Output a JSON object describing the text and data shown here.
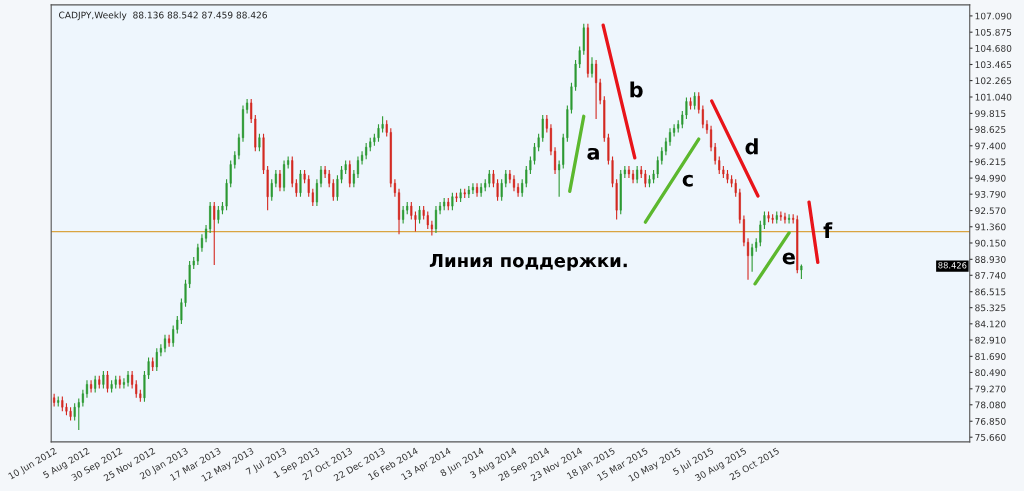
{
  "chart_data": {
    "type": "candlestick",
    "title": "CADJPY,Weekly  88.136 88.542 87.459 88.426",
    "x": [
      "2012-06-10",
      "2012-06-17",
      "2012-06-24",
      "2012-07-01",
      "2012-07-08",
      "2012-07-15",
      "2012-07-22",
      "2012-07-29",
      "2012-08-05",
      "2012-08-12",
      "2012-08-19",
      "2012-08-26",
      "2012-09-02",
      "2012-09-09",
      "2012-09-16",
      "2012-09-23",
      "2012-09-30",
      "2012-10-07",
      "2012-10-14",
      "2012-10-21",
      "2012-10-28",
      "2012-11-04",
      "2012-11-11",
      "2012-11-18",
      "2012-11-25",
      "2012-12-02",
      "2012-12-09",
      "2012-12-16",
      "2012-12-23",
      "2012-12-30",
      "2013-01-06",
      "2013-01-13",
      "2013-01-20",
      "2013-01-27",
      "2013-02-03",
      "2013-02-10",
      "2013-02-17",
      "2013-02-24",
      "2013-03-03",
      "2013-03-10",
      "2013-03-17",
      "2013-03-24",
      "2013-03-31",
      "2013-04-07",
      "2013-04-14",
      "2013-04-21",
      "2013-04-28",
      "2013-05-05",
      "2013-05-12",
      "2013-05-19",
      "2013-05-26",
      "2013-06-02",
      "2013-06-09",
      "2013-06-16",
      "2013-06-23",
      "2013-06-30",
      "2013-07-07",
      "2013-07-14",
      "2013-07-21",
      "2013-07-28",
      "2013-08-04",
      "2013-08-11",
      "2013-08-18",
      "2013-08-25",
      "2013-09-01",
      "2013-09-08",
      "2013-09-15",
      "2013-09-22",
      "2013-09-29",
      "2013-10-06",
      "2013-10-13",
      "2013-10-20",
      "2013-10-27",
      "2013-11-03",
      "2013-11-10",
      "2013-11-17",
      "2013-11-24",
      "2013-12-01",
      "2013-12-08",
      "2013-12-15",
      "2013-12-22",
      "2013-12-29",
      "2014-01-05",
      "2014-01-12",
      "2014-01-19",
      "2014-01-26",
      "2014-02-02",
      "2014-02-09",
      "2014-02-16",
      "2014-02-23",
      "2014-03-02",
      "2014-03-09",
      "2014-03-16",
      "2014-03-23",
      "2014-03-30",
      "2014-04-06",
      "2014-04-13",
      "2014-04-20",
      "2014-04-27",
      "2014-05-04",
      "2014-05-11",
      "2014-05-18",
      "2014-05-25",
      "2014-06-01",
      "2014-06-08",
      "2014-06-15",
      "2014-06-22",
      "2014-06-29",
      "2014-07-06",
      "2014-07-13",
      "2014-07-20",
      "2014-07-27",
      "2014-08-03",
      "2014-08-10",
      "2014-08-17",
      "2014-08-24",
      "2014-08-31",
      "2014-09-07",
      "2014-09-14",
      "2014-09-21",
      "2014-09-28",
      "2014-10-05",
      "2014-10-12",
      "2014-10-19",
      "2014-10-26",
      "2014-11-02",
      "2014-11-09",
      "2014-11-16",
      "2014-11-23",
      "2014-11-30",
      "2014-12-07",
      "2014-12-14",
      "2014-12-21",
      "2014-12-28",
      "2015-01-04",
      "2015-01-11",
      "2015-01-18",
      "2015-01-25",
      "2015-02-01",
      "2015-02-08",
      "2015-02-15",
      "2015-02-22",
      "2015-03-01",
      "2015-03-08",
      "2015-03-15",
      "2015-03-22",
      "2015-03-29",
      "2015-04-05",
      "2015-04-12",
      "2015-04-19",
      "2015-04-26",
      "2015-05-03",
      "2015-05-10",
      "2015-05-17",
      "2015-05-24",
      "2015-05-31",
      "2015-06-07",
      "2015-06-14",
      "2015-06-21",
      "2015-06-28",
      "2015-07-05",
      "2015-07-12",
      "2015-07-19",
      "2015-07-26",
      "2015-08-02",
      "2015-08-09",
      "2015-08-16",
      "2015-08-23",
      "2015-08-30",
      "2015-09-06",
      "2015-09-13",
      "2015-09-20",
      "2015-09-27",
      "2015-10-04",
      "2015-10-11",
      "2015-10-18",
      "2015-10-25",
      "2015-11-01",
      "2015-11-08",
      "2015-11-15",
      "2015-11-22",
      "2015-11-29",
      "2015-12-06"
    ],
    "ohlc": [
      [
        78.6,
        78.9,
        77.95,
        78.25
      ],
      [
        78.25,
        78.7,
        77.95,
        78.4
      ],
      [
        78.4,
        78.7,
        77.6,
        77.9
      ],
      [
        77.9,
        78.2,
        77.3,
        77.6
      ],
      [
        77.6,
        77.9,
        76.9,
        77.2
      ],
      [
        77.2,
        78.2,
        76.9,
        77.9
      ],
      [
        77.9,
        78.55,
        76.2,
        78.25
      ],
      [
        78.25,
        79.2,
        77.95,
        78.9
      ],
      [
        78.9,
        79.9,
        78.6,
        79.6
      ],
      [
        79.6,
        79.9,
        79.0,
        79.3
      ],
      [
        79.3,
        80.25,
        79.0,
        79.95
      ],
      [
        79.95,
        80.25,
        79.3,
        79.6
      ],
      [
        79.6,
        80.6,
        79.3,
        80.3
      ],
      [
        80.3,
        80.6,
        79.0,
        79.3
      ],
      [
        79.3,
        79.9,
        79.0,
        79.6
      ],
      [
        79.6,
        80.25,
        79.3,
        79.95
      ],
      [
        79.95,
        80.25,
        79.3,
        79.6
      ],
      [
        79.6,
        80.05,
        79.3,
        79.75
      ],
      [
        79.75,
        80.6,
        79.45,
        80.3
      ],
      [
        80.3,
        80.6,
        79.3,
        79.6
      ],
      [
        79.6,
        79.9,
        78.6,
        78.9
      ],
      [
        78.9,
        79.2,
        78.3,
        78.6
      ],
      [
        78.6,
        80.6,
        78.3,
        80.3
      ],
      [
        80.3,
        81.6,
        80.0,
        81.3
      ],
      [
        81.3,
        81.6,
        80.6,
        80.9
      ],
      [
        80.9,
        82.3,
        80.6,
        82.0
      ],
      [
        82.0,
        82.6,
        81.7,
        82.3
      ],
      [
        82.3,
        83.3,
        82.0,
        83.0
      ],
      [
        83.0,
        83.3,
        82.4,
        82.7
      ],
      [
        82.7,
        84.0,
        82.4,
        83.7
      ],
      [
        83.7,
        84.7,
        83.4,
        84.4
      ],
      [
        84.4,
        86.0,
        84.1,
        85.7
      ],
      [
        85.7,
        87.4,
        85.4,
        87.1
      ],
      [
        87.1,
        88.8,
        86.8,
        88.5
      ],
      [
        88.5,
        89.1,
        88.2,
        88.8
      ],
      [
        88.8,
        90.1,
        88.5,
        89.8
      ],
      [
        89.8,
        90.8,
        89.5,
        90.5
      ],
      [
        90.5,
        91.5,
        90.2,
        91.2
      ],
      [
        91.2,
        93.2,
        90.9,
        92.9
      ],
      [
        92.9,
        93.2,
        88.5,
        91.9
      ],
      [
        91.9,
        92.9,
        91.6,
        92.6
      ],
      [
        92.6,
        93.2,
        92.3,
        92.9
      ],
      [
        92.9,
        94.9,
        92.6,
        94.6
      ],
      [
        94.6,
        96.3,
        94.3,
        96.0
      ],
      [
        96.0,
        97.0,
        95.7,
        96.7
      ],
      [
        96.7,
        98.3,
        96.4,
        98.0
      ],
      [
        98.0,
        100.4,
        97.7,
        100.1
      ],
      [
        100.1,
        100.9,
        99.8,
        100.6
      ],
      [
        100.6,
        100.9,
        99.1,
        99.4
      ],
      [
        99.4,
        99.7,
        97.0,
        97.3
      ],
      [
        97.3,
        98.3,
        97.0,
        98.0
      ],
      [
        98.0,
        98.3,
        95.3,
        95.6
      ],
      [
        95.6,
        95.9,
        92.6,
        93.6
      ],
      [
        93.6,
        94.9,
        93.3,
        94.6
      ],
      [
        94.6,
        95.6,
        94.3,
        95.3
      ],
      [
        95.3,
        95.6,
        94.0,
        94.3
      ],
      [
        94.3,
        96.3,
        94.0,
        96.0
      ],
      [
        96.0,
        96.6,
        95.7,
        96.3
      ],
      [
        96.3,
        96.6,
        94.3,
        94.6
      ],
      [
        94.6,
        94.9,
        93.6,
        93.9
      ],
      [
        93.9,
        95.6,
        93.6,
        95.3
      ],
      [
        95.3,
        95.6,
        94.6,
        94.9
      ],
      [
        94.9,
        95.2,
        93.6,
        93.9
      ],
      [
        93.9,
        94.2,
        92.9,
        93.2
      ],
      [
        93.2,
        94.9,
        92.9,
        94.6
      ],
      [
        94.6,
        95.9,
        94.3,
        95.6
      ],
      [
        95.6,
        95.9,
        95.0,
        95.3
      ],
      [
        95.3,
        95.6,
        94.3,
        94.6
      ],
      [
        94.6,
        94.9,
        93.3,
        93.6
      ],
      [
        93.6,
        95.2,
        93.3,
        94.9
      ],
      [
        94.9,
        95.9,
        94.6,
        95.6
      ],
      [
        95.6,
        96.3,
        95.3,
        96.0
      ],
      [
        96.0,
        96.3,
        94.3,
        94.6
      ],
      [
        94.6,
        95.6,
        94.3,
        95.3
      ],
      [
        95.3,
        96.6,
        95.0,
        96.3
      ],
      [
        96.3,
        97.0,
        96.0,
        96.7
      ],
      [
        96.7,
        97.6,
        96.4,
        97.3
      ],
      [
        97.3,
        98.0,
        97.0,
        97.7
      ],
      [
        97.7,
        98.3,
        97.4,
        98.0
      ],
      [
        98.0,
        99.0,
        97.7,
        98.7
      ],
      [
        98.7,
        99.6,
        98.4,
        99.0
      ],
      [
        99.0,
        99.3,
        98.1,
        98.4
      ],
      [
        98.4,
        98.7,
        94.3,
        94.6
      ],
      [
        94.6,
        94.9,
        93.6,
        93.9
      ],
      [
        93.9,
        94.2,
        90.8,
        91.9
      ],
      [
        91.9,
        92.9,
        91.6,
        92.6
      ],
      [
        92.6,
        93.2,
        92.3,
        92.9
      ],
      [
        92.9,
        93.2,
        91.9,
        92.2
      ],
      [
        92.2,
        92.5,
        91.0,
        91.9
      ],
      [
        91.9,
        92.9,
        91.6,
        92.6
      ],
      [
        92.6,
        92.9,
        91.9,
        92.2
      ],
      [
        92.2,
        92.5,
        91.2,
        91.5
      ],
      [
        91.5,
        91.8,
        90.7,
        91.2
      ],
      [
        91.2,
        92.9,
        90.9,
        92.6
      ],
      [
        92.6,
        93.2,
        92.3,
        92.9
      ],
      [
        92.9,
        93.5,
        92.6,
        93.2
      ],
      [
        93.2,
        93.5,
        92.6,
        92.9
      ],
      [
        92.9,
        93.9,
        92.6,
        93.6
      ],
      [
        93.6,
        93.9,
        93.2,
        93.5
      ],
      [
        93.5,
        94.2,
        93.2,
        93.9
      ],
      [
        93.9,
        94.2,
        93.5,
        93.8
      ],
      [
        93.8,
        94.4,
        93.5,
        94.1
      ],
      [
        94.1,
        94.6,
        93.8,
        94.3
      ],
      [
        94.3,
        94.6,
        93.6,
        93.9
      ],
      [
        93.9,
        94.6,
        93.6,
        94.3
      ],
      [
        94.3,
        94.9,
        94.0,
        94.6
      ],
      [
        94.6,
        95.6,
        94.3,
        95.3
      ],
      [
        95.3,
        95.6,
        94.3,
        94.6
      ],
      [
        94.6,
        94.9,
        93.3,
        93.6
      ],
      [
        93.6,
        94.9,
        93.3,
        94.6
      ],
      [
        94.6,
        95.6,
        94.3,
        95.3
      ],
      [
        95.3,
        95.6,
        94.6,
        94.9
      ],
      [
        94.9,
        95.2,
        94.0,
        94.3
      ],
      [
        94.3,
        94.6,
        93.6,
        93.9
      ],
      [
        93.9,
        94.9,
        93.6,
        94.6
      ],
      [
        94.6,
        95.9,
        94.3,
        95.6
      ],
      [
        95.6,
        96.6,
        95.3,
        96.3
      ],
      [
        96.3,
        97.6,
        96.0,
        97.3
      ],
      [
        97.3,
        98.3,
        97.0,
        98.0
      ],
      [
        98.0,
        99.7,
        97.7,
        99.4
      ],
      [
        99.4,
        99.7,
        98.4,
        98.7
      ],
      [
        98.7,
        99.0,
        96.7,
        97.0
      ],
      [
        97.0,
        97.3,
        95.3,
        95.6
      ],
      [
        95.6,
        96.3,
        93.6,
        96.0
      ],
      [
        96.0,
        98.3,
        95.7,
        98.0
      ],
      [
        98.0,
        100.4,
        97.7,
        100.1
      ],
      [
        100.1,
        102.1,
        99.8,
        101.8
      ],
      [
        101.8,
        103.8,
        101.5,
        103.5
      ],
      [
        103.5,
        104.8,
        103.2,
        104.5
      ],
      [
        104.5,
        106.5,
        104.2,
        106.2
      ],
      [
        106.2,
        106.5,
        102.5,
        102.8
      ],
      [
        102.8,
        104.0,
        102.5,
        103.5
      ],
      [
        103.5,
        103.8,
        99.4,
        102.1
      ],
      [
        102.1,
        102.4,
        100.5,
        100.8
      ],
      [
        100.8,
        101.1,
        97.7,
        98.0
      ],
      [
        98.0,
        98.3,
        96.0,
        96.3
      ],
      [
        96.3,
        96.6,
        94.3,
        94.6
      ],
      [
        94.6,
        94.9,
        91.9,
        92.6
      ],
      [
        92.6,
        95.6,
        92.3,
        95.3
      ],
      [
        95.3,
        95.9,
        95.0,
        95.6
      ],
      [
        95.6,
        95.9,
        95.0,
        95.3
      ],
      [
        95.3,
        95.6,
        94.6,
        94.9
      ],
      [
        94.9,
        95.9,
        94.6,
        95.6
      ],
      [
        95.6,
        95.9,
        95.0,
        95.3
      ],
      [
        95.3,
        95.6,
        94.3,
        94.6
      ],
      [
        94.6,
        95.2,
        94.3,
        94.9
      ],
      [
        94.9,
        95.6,
        94.6,
        95.3
      ],
      [
        95.3,
        96.6,
        95.0,
        96.3
      ],
      [
        96.3,
        97.3,
        96.0,
        97.0
      ],
      [
        97.0,
        98.0,
        96.7,
        97.7
      ],
      [
        97.7,
        98.7,
        97.4,
        98.4
      ],
      [
        98.4,
        99.0,
        98.1,
        98.7
      ],
      [
        98.7,
        99.3,
        98.4,
        99.0
      ],
      [
        99.0,
        100.0,
        98.7,
        99.7
      ],
      [
        99.7,
        101.0,
        99.4,
        100.7
      ],
      [
        100.7,
        101.0,
        100.1,
        100.4
      ],
      [
        100.4,
        101.4,
        100.1,
        101.1
      ],
      [
        101.1,
        101.4,
        99.8,
        100.1
      ],
      [
        100.1,
        100.4,
        98.7,
        99.0
      ],
      [
        99.0,
        99.3,
        98.3,
        98.6
      ],
      [
        98.6,
        98.9,
        97.0,
        97.3
      ],
      [
        97.3,
        97.6,
        96.0,
        96.3
      ],
      [
        96.3,
        96.6,
        95.3,
        95.6
      ],
      [
        95.6,
        95.9,
        95.0,
        95.3
      ],
      [
        95.3,
        95.6,
        94.6,
        94.9
      ],
      [
        94.9,
        95.2,
        94.3,
        94.6
      ],
      [
        94.6,
        94.9,
        93.6,
        93.9
      ],
      [
        93.9,
        94.2,
        91.6,
        91.9
      ],
      [
        91.9,
        92.2,
        89.9,
        90.2
      ],
      [
        90.2,
        90.5,
        87.4,
        89.2
      ],
      [
        89.2,
        90.1,
        88.0,
        89.8
      ],
      [
        89.8,
        90.5,
        89.5,
        90.2
      ],
      [
        90.2,
        91.8,
        89.9,
        91.5
      ],
      [
        91.5,
        92.5,
        91.2,
        92.2
      ],
      [
        92.2,
        92.5,
        91.7,
        92.0
      ],
      [
        92.0,
        92.3,
        91.6,
        91.9
      ],
      [
        91.9,
        92.5,
        91.6,
        92.2
      ],
      [
        92.2,
        92.5,
        91.8,
        92.1
      ],
      [
        92.1,
        92.4,
        91.6,
        91.9
      ],
      [
        91.9,
        92.3,
        91.6,
        92.0
      ],
      [
        92.0,
        92.3,
        91.6,
        91.9
      ],
      [
        91.9,
        92.2,
        87.9,
        88.136
      ],
      [
        88.136,
        88.542,
        87.459,
        88.426
      ]
    ],
    "series": [
      {
        "type": "line",
        "name": "a",
        "color": "#5cb82e",
        "x": [
          "2014-11-06",
          "2014-11-30"
        ],
        "values": [
          94.0,
          99.6
        ]
      },
      {
        "type": "line",
        "name": "b",
        "color": "#e8141a",
        "x": [
          "2015-01-02",
          "2015-02-25"
        ],
        "values": [
          106.4,
          96.5
        ]
      },
      {
        "type": "line",
        "name": "c",
        "color": "#5cb82e",
        "x": [
          "2015-03-15",
          "2015-06-14"
        ],
        "values": [
          91.7,
          97.9
        ]
      },
      {
        "type": "line",
        "name": "d",
        "color": "#e8141a",
        "x": [
          "2015-07-06",
          "2015-09-23"
        ],
        "values": [
          100.75,
          93.66
        ]
      },
      {
        "type": "line",
        "name": "e",
        "color": "#5cb82e",
        "x": [
          "2015-09-18",
          "2015-11-15"
        ],
        "values": [
          87.1,
          90.9
        ]
      },
      {
        "type": "line",
        "name": "f",
        "color": "#e8141a",
        "x": [
          "2015-12-19",
          "2016-01-03"
        ],
        "values": [
          93.2,
          88.7
        ]
      }
    ],
    "annotations": [
      {
        "text": "88.426",
        "y": 88.426
      }
    ],
    "ref_lines": [
      {
        "axis": "y",
        "value": 91.0,
        "color": "#d9a441",
        "label": "Линия поддержки."
      }
    ],
    "xlim": [
      "2012-06-05",
      "2016-09-18"
    ],
    "xticks": [
      {
        "value": "2012-06-10",
        "label": "10 Jun 2012"
      },
      {
        "value": "2012-08-05",
        "label": "5 Aug 2012"
      },
      {
        "value": "2012-09-30",
        "label": "30 Sep 2012"
      },
      {
        "value": "2012-11-25",
        "label": "25 Nov 2012"
      },
      {
        "value": "2013-01-20",
        "label": "20 Jan 2013"
      },
      {
        "value": "2013-03-17",
        "label": "17 Mar 2013"
      },
      {
        "value": "2013-05-12",
        "label": "12 May 2013"
      },
      {
        "value": "2013-07-07",
        "label": "7 Jul 2013"
      },
      {
        "value": "2013-09-01",
        "label": "1 Sep 2013"
      },
      {
        "value": "2013-10-27",
        "label": "27 Oct 2013"
      },
      {
        "value": "2013-12-22",
        "label": "22 Dec 2013"
      },
      {
        "value": "2014-02-16",
        "label": "16 Feb 2014"
      },
      {
        "value": "2014-04-13",
        "label": "13 Apr 2014"
      },
      {
        "value": "2014-06-08",
        "label": "8 Jun 2014"
      },
      {
        "value": "2014-08-03",
        "label": "3 Aug 2014"
      },
      {
        "value": "2014-09-28",
        "label": "28 Sep 2014"
      },
      {
        "value": "2014-11-23",
        "label": "23 Nov 2014"
      },
      {
        "value": "2015-01-18",
        "label": "18 Jan 2015"
      },
      {
        "value": "2015-03-15",
        "label": "15 Mar 2015"
      },
      {
        "value": "2015-05-10",
        "label": "10 May 2015"
      },
      {
        "value": "2015-07-05",
        "label": "5 Jul 2015"
      },
      {
        "value": "2015-08-30",
        "label": "30 Aug 2015"
      },
      {
        "value": "2015-10-25",
        "label": "25 Oct 2015"
      }
    ],
    "ylim": [
      75.31,
      107.91
    ],
    "yticks": [
      {
        "value": 107.09,
        "label": "107.090"
      },
      {
        "value": 105.875,
        "label": "105.875"
      },
      {
        "value": 104.68,
        "label": "104.680"
      },
      {
        "value": 103.465,
        "label": "103.465"
      },
      {
        "value": 102.265,
        "label": "102.265"
      },
      {
        "value": 101.04,
        "label": "101.040"
      },
      {
        "value": 99.815,
        "label": "99.815"
      },
      {
        "value": 98.625,
        "label": "98.625"
      },
      {
        "value": 97.4,
        "label": "97.400"
      },
      {
        "value": 96.215,
        "label": "96.215"
      },
      {
        "value": 94.99,
        "label": "94.990"
      },
      {
        "value": 93.79,
        "label": "93.790"
      },
      {
        "value": 92.57,
        "label": "92.570"
      },
      {
        "value": 91.36,
        "label": "91.360"
      },
      {
        "value": 90.15,
        "label": "90.150"
      },
      {
        "value": 88.93,
        "label": "88.930"
      },
      {
        "value": 87.74,
        "label": "87.740"
      },
      {
        "value": 86.515,
        "label": "86.515"
      },
      {
        "value": 85.325,
        "label": "85.325"
      },
      {
        "value": 84.12,
        "label": "84.120"
      },
      {
        "value": 82.91,
        "label": "82.910"
      },
      {
        "value": 81.69,
        "label": "81.690"
      },
      {
        "value": 80.49,
        "label": "80.490"
      },
      {
        "value": 79.27,
        "label": "79.270"
      },
      {
        "value": 78.08,
        "label": "78.080"
      },
      {
        "value": 76.85,
        "label": "76.850"
      },
      {
        "value": 75.66,
        "label": "75.660"
      }
    ],
    "grid": false,
    "legend": false
  }
}
